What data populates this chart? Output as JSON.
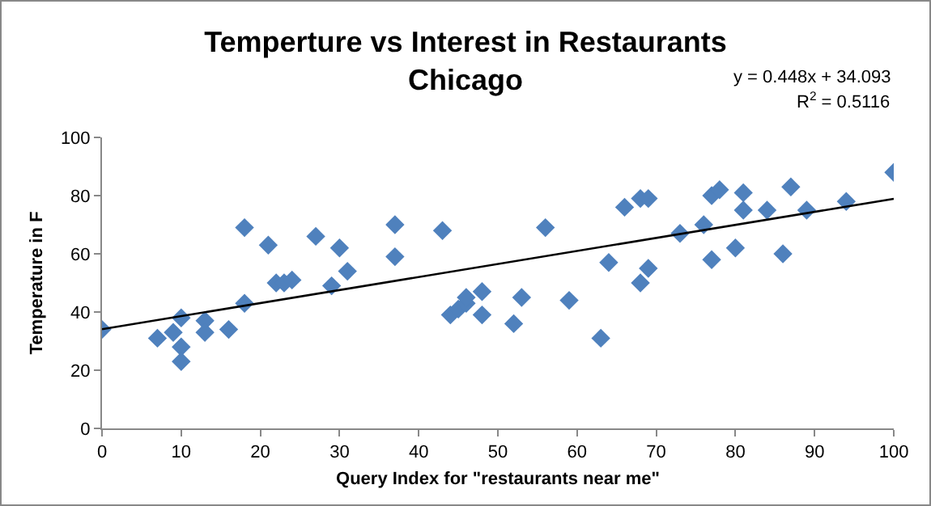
{
  "chart_data": {
    "type": "scatter",
    "title": "Temperture vs Interest in Restaurants\nChicago",
    "xlabel": "Query Index for \"restaurants near me\"",
    "ylabel": "Temperature in F",
    "annotations": [
      "y = 0.448x + 34.093",
      "R$^{2}$ = 0.5116"
    ],
    "xlim": [
      0,
      100
    ],
    "xticks": [
      0,
      10,
      20,
      30,
      40,
      50,
      60,
      70,
      80,
      90,
      100
    ],
    "ylim": [
      0,
      100
    ],
    "yticks": [
      0,
      20,
      40,
      60,
      80,
      100
    ],
    "grid": false,
    "series": [
      {
        "marker": "diamond",
        "color": "#4f81bd",
        "x": [
          0,
          7,
          9,
          10,
          10,
          10,
          13,
          13,
          16,
          18,
          18,
          21,
          22,
          23,
          24,
          27,
          29,
          30,
          31,
          37,
          37,
          43,
          44,
          45,
          46,
          46,
          48,
          48,
          52,
          53,
          56,
          59,
          63,
          64,
          66,
          68,
          68,
          69,
          69,
          73,
          76,
          77,
          77,
          78,
          80,
          81,
          81,
          84,
          86,
          87,
          89,
          94,
          100
        ],
        "values": [
          34,
          31,
          33,
          38,
          28,
          23,
          37,
          33,
          34,
          69,
          43,
          63,
          50,
          50,
          51,
          66,
          49,
          62,
          54,
          70,
          59,
          68,
          39,
          41,
          43,
          45,
          47,
          39,
          36,
          45,
          69,
          44,
          31,
          57,
          76,
          79,
          50,
          79,
          55,
          67,
          70,
          80,
          58,
          82,
          62,
          81,
          75,
          75,
          60,
          83,
          75,
          78,
          88
        ]
      },
      {
        "type": "line",
        "color": "#000000",
        "line_style": "solid",
        "x": [
          0,
          100
        ],
        "values": [
          34.1,
          78.9
        ]
      }
    ]
  }
}
